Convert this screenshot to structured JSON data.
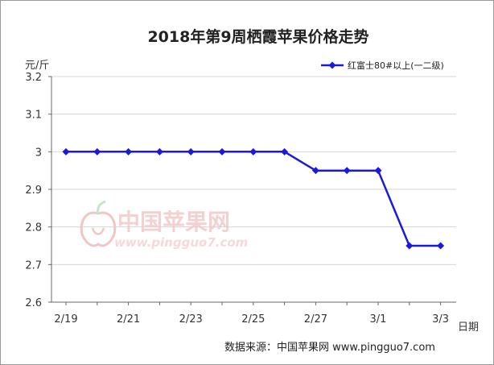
{
  "chart_data": {
    "type": "line",
    "title": "2018年第9周栖霞苹果价格走势",
    "ylabel": "元/斤",
    "xlabel": "日期",
    "ylim": [
      2.6,
      3.2
    ],
    "yticks": [
      "3.2",
      "3.1",
      "3",
      "2.9",
      "2.8",
      "2.7",
      "2.6"
    ],
    "ytick_values": [
      3.2,
      3.1,
      3.0,
      2.9,
      2.8,
      2.7,
      2.6
    ],
    "x": [
      "2/19",
      "2/20",
      "2/21",
      "2/22",
      "2/23",
      "2/24",
      "2/25",
      "2/26",
      "2/27",
      "2/28",
      "3/1",
      "3/2",
      "3/3"
    ],
    "xtick_labels": [
      "2/19",
      "2/21",
      "2/23",
      "2/25",
      "2/27",
      "3/1",
      "3/3"
    ],
    "series": [
      {
        "name": "红富士80#以上(一二级)",
        "color": "#1a1adc",
        "values": [
          3.0,
          3.0,
          3.0,
          3.0,
          3.0,
          3.0,
          3.0,
          3.0,
          2.95,
          2.95,
          2.95,
          2.75,
          2.75
        ]
      }
    ],
    "grid": "horizontal",
    "legend_position": "top-right"
  },
  "watermark": {
    "name": "中国苹果网",
    "url": "www.pingguo7.com"
  },
  "source_note": "数据来源：中国苹果网 www.pingguo7.com"
}
